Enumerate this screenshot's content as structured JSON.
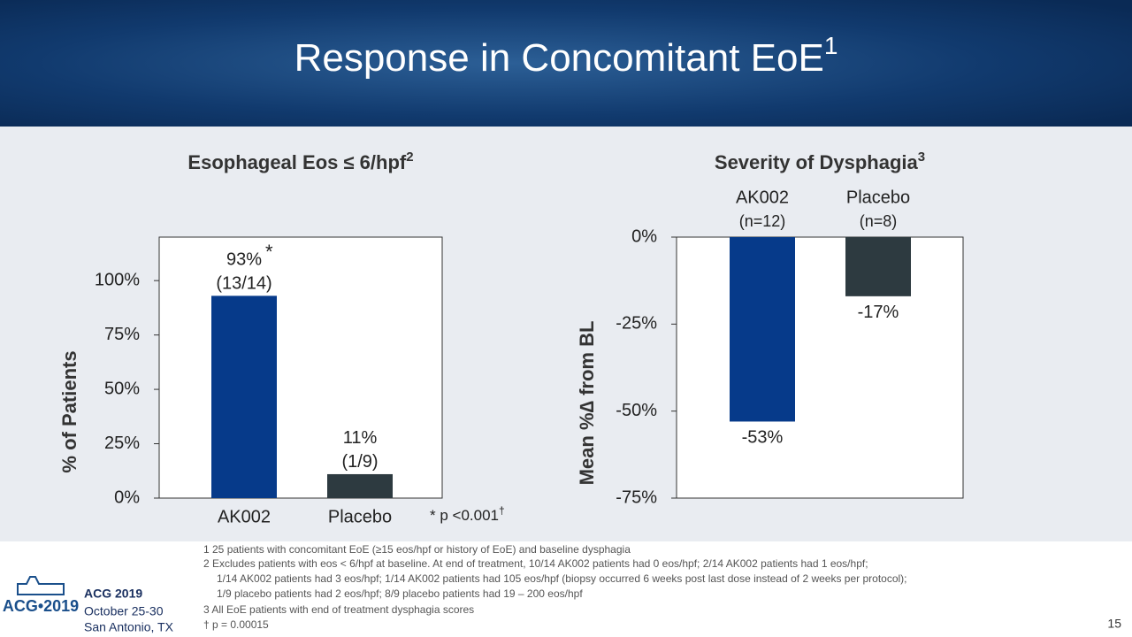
{
  "title": "Response in Concomitant EoE",
  "title_sup": "1",
  "chart_data": [
    {
      "type": "bar",
      "title": "Esophageal Eos ≤ 6/hpf",
      "title_sup": "2",
      "y_label": "% of Patients",
      "categories": [
        "AK002",
        "Placebo"
      ],
      "values": [
        93,
        11
      ],
      "value_labels": [
        "93%",
        "11%"
      ],
      "counts": [
        "(13/14)",
        "(1/9)"
      ],
      "marker": "*",
      "colors": [
        "#063a8a",
        "#2d3a40"
      ],
      "ylim": [
        0,
        120
      ],
      "yticks": [
        {
          "value": 0,
          "label": "0%"
        },
        {
          "value": 25,
          "label": "25%"
        },
        {
          "value": 50,
          "label": "50%"
        },
        {
          "value": 75,
          "label": "75%"
        },
        {
          "value": 100,
          "label": "100%"
        }
      ],
      "note": "* p <0.001",
      "note_sup": "†"
    },
    {
      "type": "bar",
      "title": "Severity of Dysphagia",
      "title_sup": "3",
      "y_label": "Mean %∆ from BL",
      "categories": [
        "AK002",
        "Placebo"
      ],
      "values": [
        -53,
        -17
      ],
      "value_labels": [
        "-53%",
        "-17%"
      ],
      "counts": [
        "(n=12)",
        "(n=8)"
      ],
      "colors": [
        "#063a8a",
        "#2d3a40"
      ],
      "ylim": [
        -75,
        0
      ],
      "yticks": [
        {
          "value": 0,
          "label": "0%"
        },
        {
          "value": -25,
          "label": "-25%"
        },
        {
          "value": -50,
          "label": "-50%"
        },
        {
          "value": -75,
          "label": "-75%"
        }
      ]
    }
  ],
  "footnotes": [
    "1  25 patients with concomitant EoE (≥15 eos/hpf or history of EoE) and baseline dysphagia",
    "2  Excludes patients with eos < 6/hpf at baseline. At end of treatment, 10/14 AK002 patients had 0 eos/hpf; 2/14 AK002 patients had 1 eos/hpf;",
    "1/14 AK002 patients had 3 eos/hpf; 1/14 AK002 patients had 105 eos/hpf (biopsy occurred 6 weeks post last dose instead of 2 weeks per protocol);",
    "1/9 placebo patients had 2 eos/hpf; 8/9 placebo patients had 19 – 200 eos/hpf",
    "3  All EoE patients with end of treatment dysphagia scores",
    "†  p = 0.00015"
  ],
  "logo": {
    "mark": "ACG•2019",
    "name": "ACG 2019",
    "dates": "October 25-30",
    "place": "San Antonio, TX"
  },
  "page_number": "15"
}
